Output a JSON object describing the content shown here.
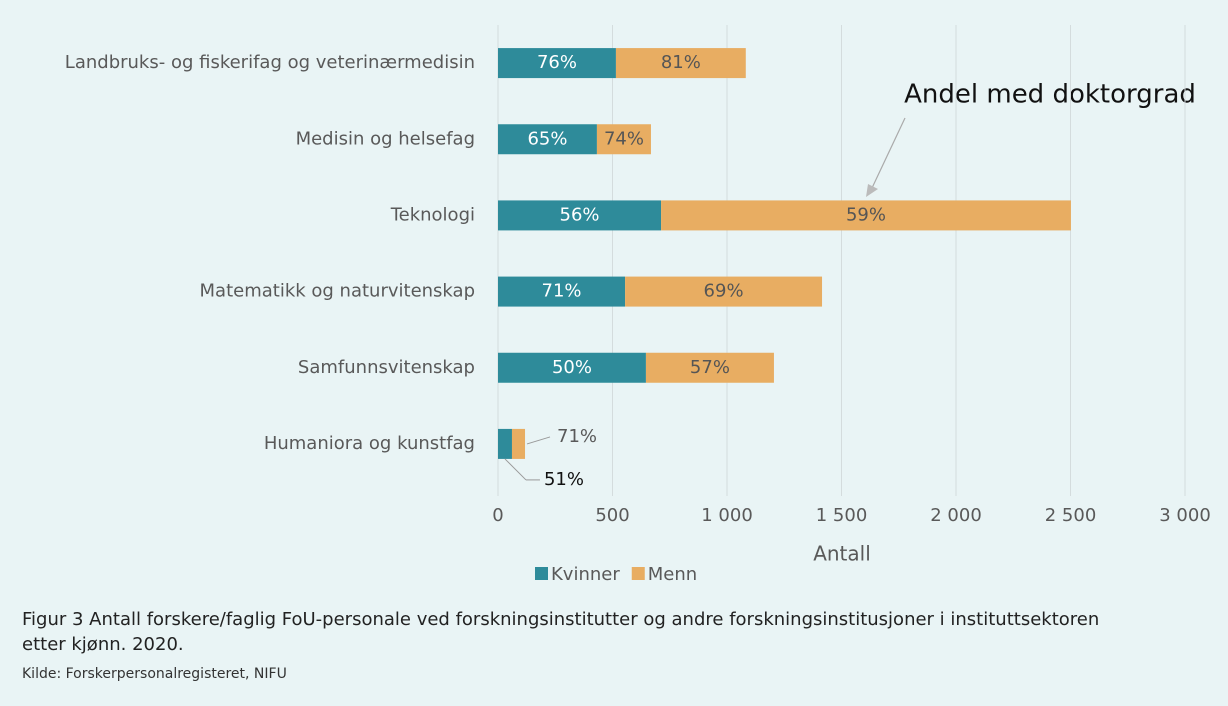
{
  "chart_data": {
    "type": "stacked_barh",
    "categories": [
      "Landbruks- og fiskerifag og veterinærmedisin",
      "Medisin og helsefag",
      "Teknologi",
      "Matematikk og naturvitenskap",
      "Samfunnsvitenskap",
      "Humaniora og kunstfag"
    ],
    "series": [
      {
        "name": "Kvinner",
        "color": "#2e8b9a",
        "values": [
          515,
          432,
          712,
          555,
          646,
          61
        ],
        "doctorate_labels": [
          "76%",
          "65%",
          "56%",
          "71%",
          "50%",
          "51%"
        ]
      },
      {
        "name": "Menn",
        "color": "#e8ad62",
        "values": [
          567,
          236,
          1790,
          860,
          559,
          57
        ],
        "doctorate_labels": [
          "81%",
          "74%",
          "59%",
          "69%",
          "57%",
          "71%"
        ]
      }
    ],
    "xlim": [
      0,
      3000
    ],
    "xticks": [
      0,
      {
        "value": 500,
        "label": "500"
      },
      {
        "value": 1000,
        "label": "1 000"
      },
      {
        "value": 1500,
        "label": "1 500"
      },
      {
        "value": 2000,
        "label": "2 000"
      },
      {
        "value": 2500,
        "label": "2 500"
      },
      {
        "value": 3000,
        "label": "3 000"
      }
    ],
    "xlabel": "Antall",
    "annotation": "Andel med doktorgrad",
    "grid": true,
    "caption": "Figur 3 Antall forskere/faglig FoU-personale ved forskningsinstitutter og andre forskningsinstitusjoner i instituttsektoren etter kjønn. 2020.",
    "source": "Kilde: Forskerpersonalregisteret, NIFU"
  }
}
